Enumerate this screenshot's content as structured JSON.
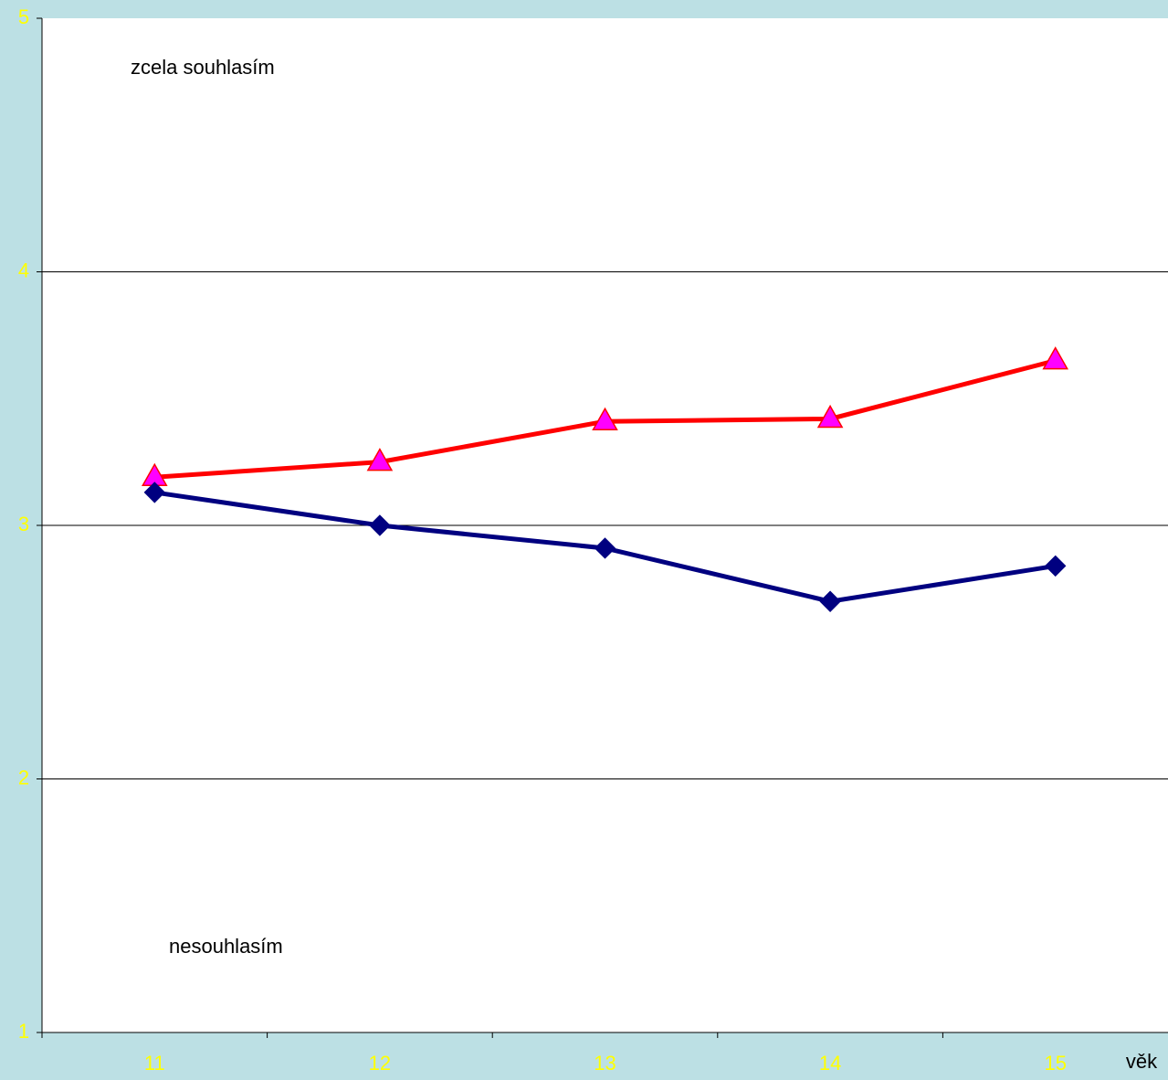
{
  "chart_data": {
    "type": "line",
    "categories": [
      "11",
      "12",
      "13",
      "14",
      "15"
    ],
    "series": [
      {
        "color": "#ff0000",
        "marker": "triangle",
        "marker_color": "#ff00ff",
        "values": [
          3.19,
          3.25,
          3.41,
          3.42,
          3.65
        ]
      },
      {
        "color": "#000080",
        "marker": "diamond",
        "marker_color": "#000080",
        "values": [
          3.13,
          3.0,
          2.91,
          2.7,
          2.84
        ]
      }
    ],
    "ylim": [
      1,
      5
    ],
    "yticks": [
      1,
      2,
      3,
      4,
      5
    ],
    "grid": true,
    "xlabel": "věk",
    "annotations": [
      "zcela souhlasím",
      "nesouhlasím"
    ]
  }
}
